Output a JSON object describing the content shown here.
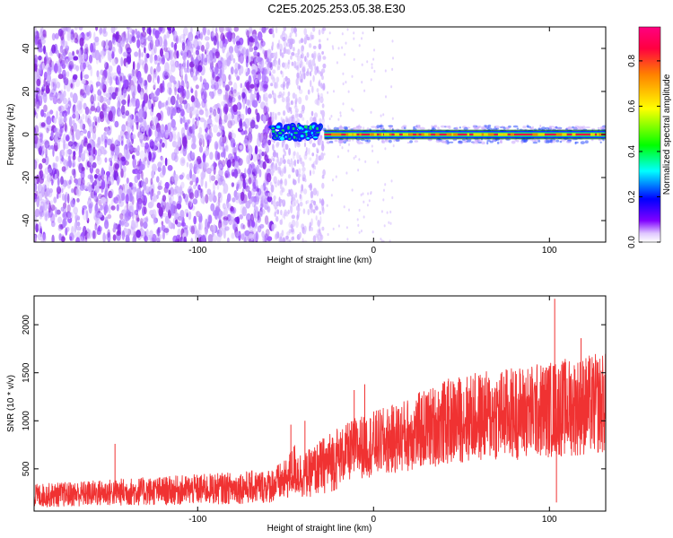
{
  "figure": {
    "title": "C2E5.2025.253.05.38.E30"
  },
  "chart_data": [
    {
      "type": "heatmap",
      "panel": "spectrogram",
      "xlabel": "Height of straight line (km)",
      "ylabel": "Frequency (Hz)",
      "xlim": [
        -193,
        132
      ],
      "ylim": [
        -50,
        50
      ],
      "x_ticks": [
        -100,
        0,
        100
      ],
      "y_ticks": [
        -40,
        -20,
        0,
        20,
        40
      ],
      "colorbar": {
        "label": "Normalized spectral amplitude",
        "range": [
          0.0,
          0.95
        ],
        "ticks": [
          0.0,
          0.2,
          0.4,
          0.6,
          0.8
        ],
        "colormap": [
          "#ffffff",
          "#8000ff",
          "#0000ff",
          "#00ffff",
          "#00ff00",
          "#ffff00",
          "#ff8000",
          "#ff0080"
        ]
      },
      "regions": [
        {
          "name": "diffuse noise",
          "x_range": [
            -193,
            -58
          ],
          "freq_range": [
            -50,
            50
          ],
          "amplitude": 0.05
        },
        {
          "name": "sparse noise",
          "x_range": [
            -58,
            -28
          ],
          "freq_range": [
            -50,
            50
          ],
          "amplitude": 0.02
        },
        {
          "name": "turn-on line",
          "x_range": [
            -58,
            -28
          ],
          "freq_range": [
            -3,
            3
          ],
          "amplitude": 0.3
        },
        {
          "name": "carrier line",
          "x_range": [
            -28,
            132
          ],
          "freq_range": [
            -1,
            1
          ],
          "amplitude": 0.9
        }
      ],
      "reference_lines_hz": [
        -2,
        2
      ]
    },
    {
      "type": "line",
      "panel": "snr",
      "xlabel": "Height of straight line (km)",
      "ylabel": "SNR (10 * v/v)",
      "xlim": [
        -193,
        132
      ],
      "ylim": [
        60,
        2300
      ],
      "x_ticks": [
        -100,
        0,
        100
      ],
      "y_ticks": [
        500,
        1000,
        1500,
        2000
      ],
      "series": [
        {
          "name": "SNR",
          "color": "#f03232",
          "x": [
            -193,
            -180,
            -160,
            -140,
            -120,
            -100,
            -80,
            -60,
            -50,
            -45,
            -40,
            -30,
            -20,
            -10,
            0,
            10,
            20,
            30,
            40,
            50,
            60,
            70,
            80,
            90,
            100,
            104,
            110,
            120,
            132
          ],
          "y": [
            220,
            230,
            245,
            260,
            270,
            285,
            300,
            320,
            380,
            500,
            420,
            520,
            620,
            720,
            760,
            800,
            860,
            920,
            980,
            1020,
            1040,
            1060,
            1080,
            1100,
            1120,
            1130,
            1140,
            1160,
            1180
          ],
          "spikes": [
            [
              -147,
              760
            ],
            [
              -47,
              960
            ],
            [
              -39,
              1000
            ],
            [
              -11,
              1320
            ],
            [
              -5,
              1380
            ],
            [
              103,
              2270
            ],
            [
              104,
              150
            ],
            [
              118,
              1860
            ]
          ]
        }
      ]
    }
  ]
}
